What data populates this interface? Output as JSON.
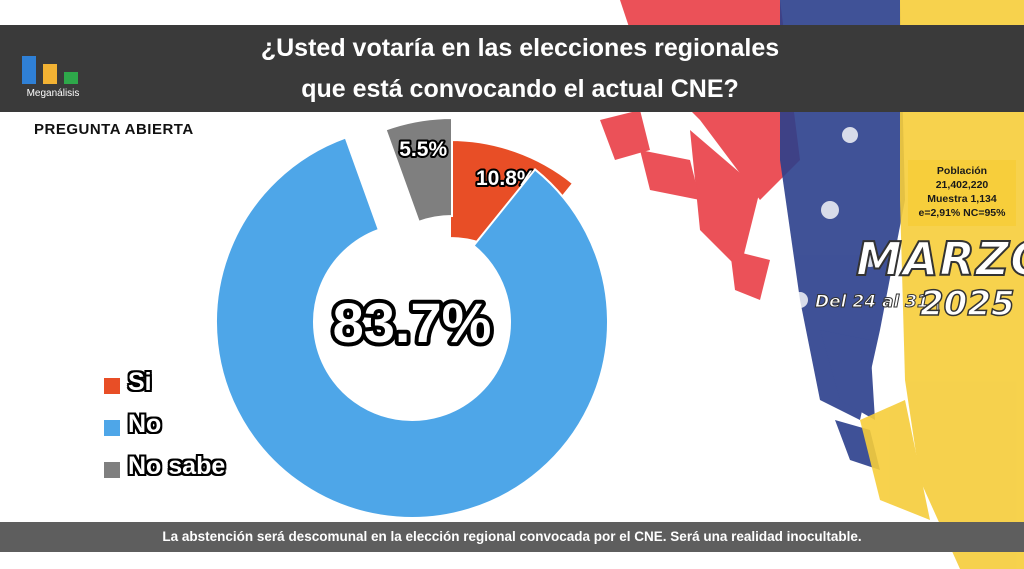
{
  "brand": {
    "name": "Meganálisis",
    "logo_colors": [
      "#2f80d6",
      "#f2b233",
      "#2ea84a"
    ]
  },
  "title_lines": [
    "¿Usted votaría en las elecciones regionales",
    "que está convocando el actual CNE?"
  ],
  "subtitle": "PREGUNTA ABIERTA",
  "sample_info": {
    "poblacion_label": "Población",
    "poblacion_value": "21,402,220",
    "muestra": "Muestra 1,134",
    "error": "e=2,91%  NC=95%"
  },
  "period": {
    "month": "MARZO",
    "dates": "Del 24 al 31 |",
    "year": "2025"
  },
  "chart_data": {
    "type": "pie",
    "style": "donut",
    "categories": [
      "Si",
      "No",
      "No sabe"
    ],
    "values": [
      10.8,
      83.7,
      5.5
    ],
    "value_labels": [
      "10.8%",
      "83.7%",
      "5.5%"
    ],
    "colors": [
      "#e84e26",
      "#4ea6e8",
      "#7f7f7f"
    ],
    "center_label": "83.7%",
    "legend_position": "left"
  },
  "footer": "La abstención será descomunal en la elección regional convocada por el CNE. Será una realidad inocultable."
}
